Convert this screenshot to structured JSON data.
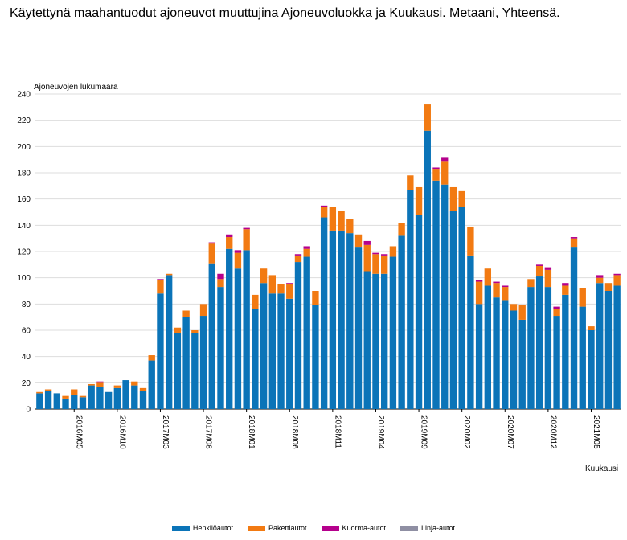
{
  "page": {
    "title": "Käytettynä maahantuodut ajoneuvot muuttujina Ajoneuvoluokka ja Kuukausi. Metaani, Yhteensä."
  },
  "chart_data": {
    "type": "bar",
    "stacked": true,
    "ylabel": "Ajoneuvojen lukumäärä",
    "xlabel": "Kuukausi",
    "ylim": [
      0,
      240
    ],
    "y_ticks": [
      0,
      20,
      40,
      60,
      80,
      100,
      120,
      140,
      160,
      180,
      200,
      220,
      240
    ],
    "grid": true,
    "legend_position": "bottom",
    "x_tick_labels": [
      "2016M05",
      "2016M10",
      "2017M03",
      "2017M08",
      "2018M01",
      "2018M06",
      "2018M11",
      "2019M04",
      "2019M09",
      "2020M02",
      "2020M07",
      "2020M12",
      "2021M05"
    ],
    "categories": [
      "2016M01",
      "2016M02",
      "2016M03",
      "2016M04",
      "2016M05",
      "2016M06",
      "2016M07",
      "2016M08",
      "2016M09",
      "2016M10",
      "2016M11",
      "2016M12",
      "2017M01",
      "2017M02",
      "2017M03",
      "2017M04",
      "2017M05",
      "2017M06",
      "2017M07",
      "2017M08",
      "2017M09",
      "2017M10",
      "2017M11",
      "2017M12",
      "2018M01",
      "2018M02",
      "2018M03",
      "2018M04",
      "2018M05",
      "2018M06",
      "2018M07",
      "2018M08",
      "2018M09",
      "2018M10",
      "2018M11",
      "2018M12",
      "2019M01",
      "2019M02",
      "2019M03",
      "2019M04",
      "2019M05",
      "2019M06",
      "2019M07",
      "2019M08",
      "2019M09",
      "2019M10",
      "2019M11",
      "2019M12",
      "2020M01",
      "2020M02",
      "2020M03",
      "2020M04",
      "2020M05",
      "2020M06",
      "2020M07",
      "2020M08",
      "2020M09",
      "2020M10",
      "2020M11",
      "2020M12",
      "2021M01",
      "2021M02",
      "2021M03",
      "2021M04",
      "2021M05",
      "2021M06",
      "2021M07",
      "2021M08"
    ],
    "series": [
      {
        "name": "Henkilöautot",
        "color": "#0b74b8",
        "values": [
          12,
          14,
          12,
          8,
          11,
          9,
          18,
          17,
          13,
          16,
          22,
          18,
          14,
          37,
          88,
          102,
          58,
          70,
          58,
          71,
          111,
          93,
          122,
          107,
          121,
          76,
          96,
          88,
          88,
          84,
          112,
          116,
          79,
          146,
          136,
          136,
          134,
          123,
          105,
          103,
          103,
          116,
          132,
          167,
          148,
          212,
          174,
          171,
          151,
          154,
          117,
          80,
          94,
          85,
          83,
          75,
          68,
          93,
          101,
          93,
          71,
          87,
          123,
          78,
          60,
          96,
          90,
          94
        ]
      },
      {
        "name": "Pakettiautot",
        "color": "#f27a12",
        "values": [
          1,
          1,
          0,
          2,
          4,
          1,
          1,
          3,
          0,
          2,
          0,
          3,
          2,
          4,
          10,
          1,
          4,
          5,
          2,
          9,
          15,
          6,
          9,
          12,
          16,
          11,
          11,
          14,
          7,
          11,
          5,
          6,
          11,
          8,
          18,
          15,
          11,
          10,
          20,
          15,
          14,
          8,
          10,
          11,
          21,
          20,
          9,
          18,
          18,
          12,
          22,
          17,
          13,
          11,
          10,
          5,
          11,
          6,
          8,
          13,
          5,
          7,
          7,
          14,
          3,
          4,
          6,
          8
        ]
      },
      {
        "name": "Kuorma-autot",
        "color": "#b5008c",
        "values": [
          0,
          0,
          0,
          0,
          0,
          0,
          0,
          1,
          0,
          0,
          0,
          0,
          0,
          0,
          1,
          0,
          0,
          0,
          0,
          0,
          1,
          4,
          2,
          2,
          1,
          0,
          0,
          0,
          0,
          1,
          1,
          2,
          0,
          1,
          0,
          0,
          0,
          0,
          3,
          1,
          1,
          0,
          0,
          0,
          0,
          0,
          1,
          3,
          0,
          0,
          0,
          1,
          0,
          1,
          1,
          0,
          0,
          0,
          1,
          2,
          2,
          2,
          1,
          0,
          0,
          2,
          0,
          1
        ]
      },
      {
        "name": "Linja-autot",
        "color": "#8f8fa3",
        "values": [
          0,
          0,
          0,
          0,
          0,
          0,
          0,
          0,
          0,
          0,
          0,
          0,
          0,
          0,
          0,
          0,
          0,
          0,
          0,
          0,
          0,
          0,
          0,
          0,
          0,
          0,
          0,
          0,
          0,
          0,
          0,
          0,
          0,
          0,
          0,
          0,
          0,
          0,
          0,
          0,
          0,
          0,
          0,
          0,
          0,
          0,
          0,
          0,
          0,
          0,
          0,
          0,
          0,
          0,
          0,
          0,
          0,
          0,
          0,
          0,
          0,
          0,
          0,
          0,
          0,
          0,
          0,
          0
        ]
      }
    ]
  }
}
